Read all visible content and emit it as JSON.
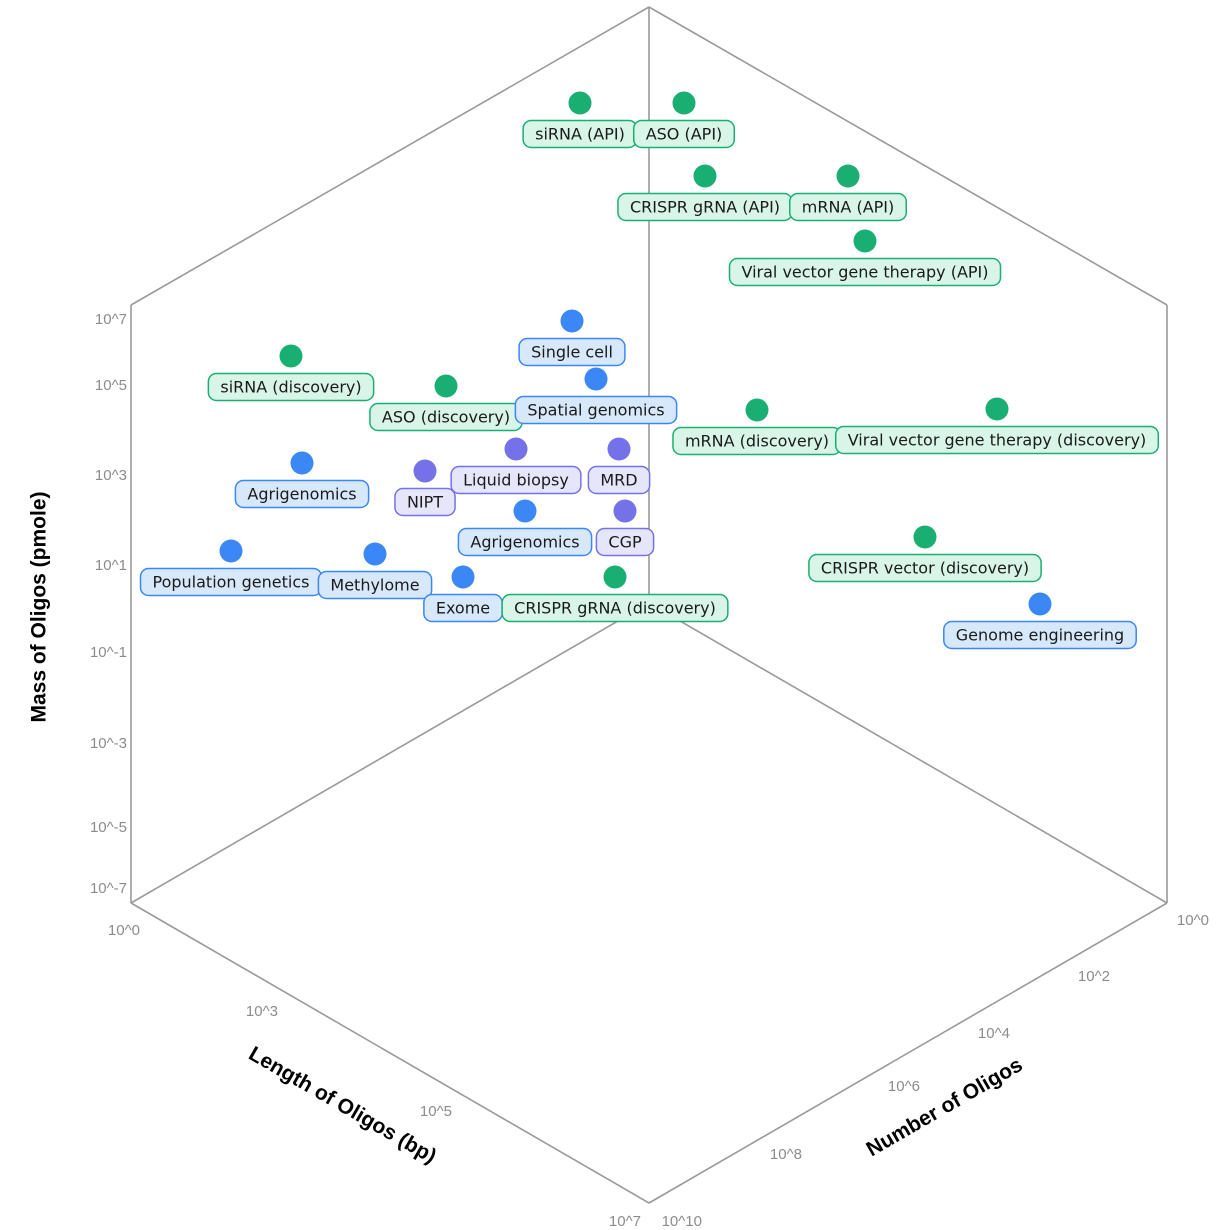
{
  "chart_data": {
    "type": "scatter",
    "colors": {
      "green": "#1aaf72",
      "green_fill": "#d9f5e7",
      "blue": "#3b87f5",
      "blue_fill": "#d8e8fb",
      "purple": "#7571e8",
      "purple_fill": "#e6e6fb"
    },
    "axes": {
      "mass": {
        "title": "Mass of Oligos (pmole)",
        "ticks": [
          "10^7",
          "10^5",
          "10^3",
          "10^1",
          "10^-1",
          "10^-3",
          "10^-5",
          "10^-7"
        ]
      },
      "length": {
        "title": "Length of Oligos (bp)",
        "ticks": [
          "10^0",
          "10^3",
          "10^5",
          "10^7"
        ]
      },
      "number": {
        "title": "Number of Oligos",
        "ticks": [
          "10^0",
          "10^2",
          "10^4",
          "10^6",
          "10^8",
          "10^10"
        ]
      }
    },
    "points": [
      {
        "label": "siRNA (API)",
        "color": "green"
      },
      {
        "label": "ASO (API)",
        "color": "green"
      },
      {
        "label": "CRISPR gRNA (API)",
        "color": "green"
      },
      {
        "label": "mRNA (API)",
        "color": "green"
      },
      {
        "label": "Viral vector gene therapy (API)",
        "color": "green"
      },
      {
        "label": "Single cell",
        "color": "blue"
      },
      {
        "label": "siRNA (discovery)",
        "color": "green"
      },
      {
        "label": "ASO (discovery)",
        "color": "green"
      },
      {
        "label": "Spatial genomics",
        "color": "blue"
      },
      {
        "label": "mRNA (discovery)",
        "color": "green"
      },
      {
        "label": "Viral vector gene therapy (discovery)",
        "color": "green"
      },
      {
        "label": "Liquid biopsy",
        "color": "purple"
      },
      {
        "label": "MRD",
        "color": "purple"
      },
      {
        "label": "Agrigenomics",
        "color": "blue"
      },
      {
        "label": "NIPT",
        "color": "purple"
      },
      {
        "label": "Agrigenomics",
        "color": "blue"
      },
      {
        "label": "CGP",
        "color": "purple"
      },
      {
        "label": "CRISPR vector (discovery)",
        "color": "green"
      },
      {
        "label": "Population genetics",
        "color": "blue"
      },
      {
        "label": "Methylome",
        "color": "blue"
      },
      {
        "label": "Exome",
        "color": "blue"
      },
      {
        "label": "CRISPR gRNA (discovery)",
        "color": "green"
      },
      {
        "label": "Genome engineering",
        "color": "blue"
      }
    ]
  }
}
